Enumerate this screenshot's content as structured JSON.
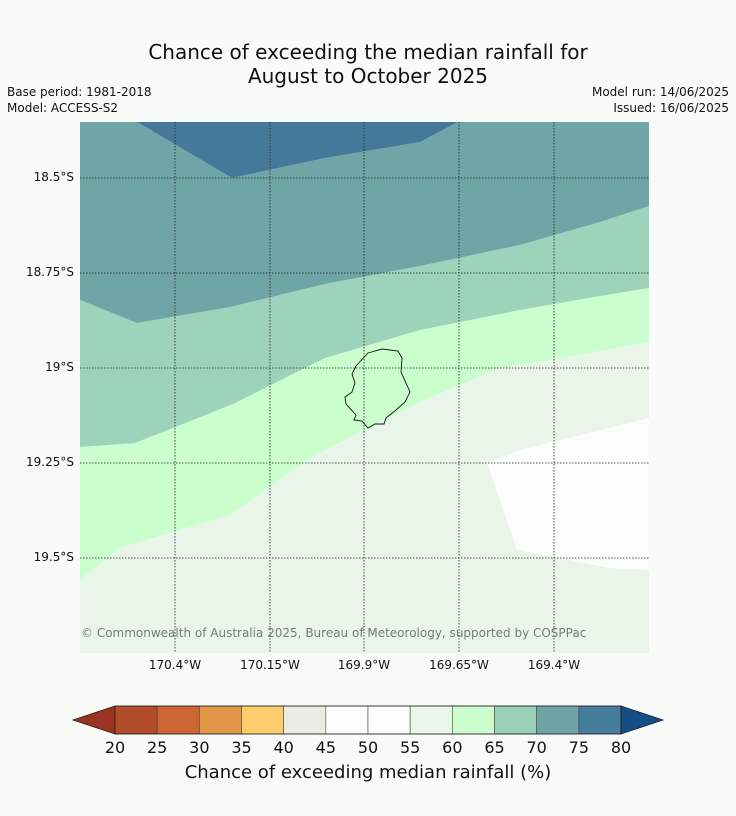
{
  "header": {
    "title_line1": "Chance of exceeding the median rainfall for",
    "title_line2": "August to October 2025",
    "base_period": "Base period: 1981-2018",
    "model": "Model: ACCESS-S2",
    "model_run": "Model run: 14/06/2025",
    "issued": "Issued: 16/06/2025"
  },
  "map": {
    "lat_labels": [
      "18.5°S",
      "18.75°S",
      "19°S",
      "19.25°S",
      "19.5°S"
    ],
    "lon_labels": [
      "170.4°W",
      "170.15°W",
      "169.9°W",
      "169.65°W",
      "169.4°W"
    ],
    "copyright": "© Commonwealth of Australia 2025, Bureau of Meteorology, supported by COSPPac",
    "zone_colors": {
      "c75_80": "#44799a",
      "c70_75": "#70a5a7",
      "c65_70": "#9dd2bb",
      "c60_65": "#cbfecd",
      "c55_60": "#eaf5e9",
      "c50_55": "#fbfcfb"
    },
    "land_icon": "island-outline"
  },
  "colorbar": {
    "label": "Chance of exceeding median rainfall (%)",
    "ticks": [
      "20",
      "25",
      "30",
      "35",
      "40",
      "45",
      "50",
      "55",
      "60",
      "65",
      "70",
      "75",
      "80"
    ],
    "under_color": "#9a3420",
    "over_color": "#134f85",
    "colors": [
      "#b34c28",
      "#cd6534",
      "#e29748",
      "#fecd6b",
      "#ebebe6",
      "#fdfdfd",
      "#fdfdfd",
      "#ebf6eb",
      "#cbfdcd",
      "#9dd0b9",
      "#6fa3a6",
      "#457b9b"
    ]
  }
}
